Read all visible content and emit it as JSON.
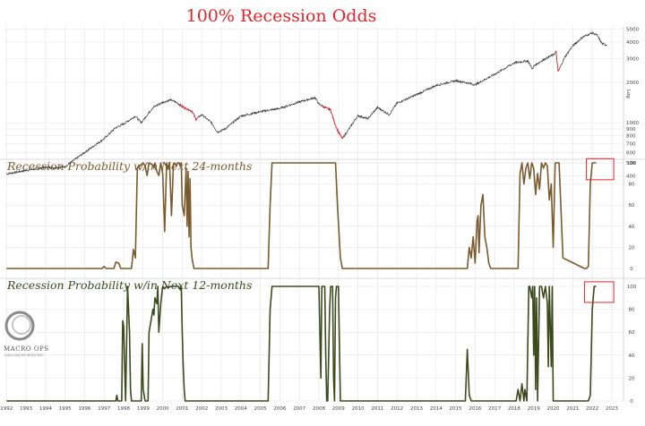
{
  "title": "100% Recession Odds",
  "colors": {
    "title": "#e0262c",
    "sp_line": "#3a3a3a",
    "sp_recession": "#e0262c",
    "prob24": "#7a5a2e",
    "prob12": "#3c4a1e",
    "highlight_box": "#e0262c",
    "grid": "#e4e4e4"
  },
  "logo": {
    "text": "MACRO OPS",
    "sub": "DATA DRIVEN INVESTING"
  },
  "chart_data": [
    {
      "type": "line",
      "panel": "top",
      "title": "",
      "ylabel": "Log",
      "yscale": "log",
      "ylim": [
        380,
        5200
      ],
      "yticks": [
        "400",
        "500",
        "600",
        "700",
        "800",
        "900",
        "1000",
        "2000",
        "3000",
        "4000",
        "5000"
      ],
      "x": [
        1992.0,
        1993.0,
        1994.0,
        1994.5,
        1995.0,
        1996.0,
        1997.0,
        1997.6,
        1998.0,
        1998.6,
        1998.9,
        1999.5,
        2000.0,
        2000.4,
        2000.7,
        2001.0,
        2001.5,
        2001.7,
        2002.0,
        2002.5,
        2002.8,
        2003.2,
        2004.0,
        2005.0,
        2006.0,
        2007.0,
        2007.8,
        2008.0,
        2008.3,
        2008.6,
        2008.8,
        2009.0,
        2009.2,
        2010.0,
        2010.5,
        2011.0,
        2011.6,
        2012.0,
        2013.0,
        2014.0,
        2015.0,
        2015.5,
        2016.0,
        2017.0,
        2018.0,
        2018.7,
        2018.95,
        2019.0,
        2019.5,
        2020.0,
        2020.15,
        2020.25,
        2020.6,
        2021.0,
        2021.5,
        2022.0,
        2022.25,
        2022.5,
        2022.75
      ],
      "values": [
        415,
        440,
        465,
        460,
        470,
        600,
        760,
        920,
        980,
        1120,
        1000,
        1300,
        1420,
        1480,
        1420,
        1320,
        1220,
        1060,
        1150,
        1000,
        850,
        900,
        1120,
        1210,
        1280,
        1430,
        1540,
        1380,
        1300,
        1250,
        1000,
        850,
        760,
        1130,
        1070,
        1300,
        1150,
        1400,
        1620,
        1900,
        2060,
        2000,
        1920,
        2300,
        2800,
        2900,
        2500,
        2650,
        2950,
        3220,
        3380,
        2400,
        3100,
        3750,
        4350,
        4700,
        4500,
        3900,
        3800
      ],
      "recession_segments": [
        [
          2000.9,
          2001.8
        ],
        [
          2008.2,
          2009.3
        ],
        [
          2020.1,
          2020.35
        ]
      ]
    },
    {
      "type": "line",
      "panel": "middle",
      "title": "Recession Probability w/in Next 24-months",
      "ylim": [
        0,
        100
      ],
      "yticks": [
        "0",
        "20",
        "40",
        "60",
        "80",
        "100"
      ],
      "x": [
        1992.0,
        1996.9,
        1997.0,
        1997.1,
        1997.5,
        1997.6,
        1997.75,
        1997.85,
        1998.4,
        1998.5,
        1998.6,
        1998.7,
        1999.0,
        1999.1,
        1999.2,
        1999.3,
        1999.5,
        1999.55,
        1999.6,
        1999.7,
        1999.8,
        1999.9,
        2000.0,
        2000.1,
        2000.2,
        2000.25,
        2000.35,
        2000.45,
        2000.55,
        2000.6,
        2000.7,
        2000.75,
        2000.85,
        2000.9,
        2000.95,
        2001.0,
        2001.1,
        2001.2,
        2001.25,
        2001.3,
        2001.35,
        2001.4,
        2001.45,
        2001.5,
        2001.6,
        2005.4,
        2005.5,
        2005.6,
        2005.7,
        2008.85,
        2008.95,
        2009.1,
        2009.2,
        2015.6,
        2015.7,
        2015.8,
        2015.9,
        2016.0,
        2016.1,
        2016.15,
        2016.2,
        2016.3,
        2016.4,
        2016.5,
        2016.6,
        2016.7,
        2016.8,
        2018.2,
        2018.3,
        2018.4,
        2018.5,
        2018.6,
        2018.7,
        2018.8,
        2018.9,
        2019.0,
        2019.1,
        2019.2,
        2019.3,
        2019.4,
        2019.5,
        2019.6,
        2019.7,
        2019.8,
        2019.9,
        2020.0,
        2020.1,
        2020.3,
        2020.5,
        2021.6,
        2021.7,
        2021.8,
        2021.9,
        2022.0,
        2022.1,
        2022.2
      ],
      "values": [
        0,
        0,
        2,
        0,
        0,
        6,
        5,
        0,
        0,
        18,
        10,
        95,
        100,
        97,
        88,
        100,
        98,
        95,
        100,
        92,
        88,
        100,
        90,
        35,
        100,
        95,
        100,
        50,
        99,
        100,
        97,
        100,
        100,
        98,
        100,
        60,
        50,
        95,
        40,
        92,
        30,
        85,
        20,
        10,
        0,
        0,
        60,
        100,
        100,
        100,
        60,
        10,
        0,
        0,
        20,
        10,
        30,
        5,
        45,
        50,
        15,
        60,
        70,
        30,
        20,
        5,
        0,
        0,
        90,
        100,
        80,
        95,
        100,
        85,
        100,
        95,
        70,
        90,
        75,
        100,
        95,
        100,
        97,
        65,
        80,
        20,
        100,
        100,
        10,
        0,
        0,
        2,
        80,
        100,
        100,
        100
      ],
      "highlight": {
        "x": [
          2021.7,
          2023.1
        ],
        "y": [
          84,
          104
        ]
      }
    },
    {
      "type": "line",
      "panel": "bottom",
      "title": "Recession Probability w/in Next 12-months",
      "ylim": [
        0,
        100
      ],
      "yticks": [
        "0",
        "20",
        "40",
        "60",
        "80",
        "100"
      ],
      "xticks": [
        "1992",
        "1993",
        "1994",
        "1995",
        "1996",
        "1997",
        "1998",
        "1999",
        "2000",
        "2001",
        "2002",
        "2003",
        "2004",
        "2005",
        "2006",
        "2007",
        "2008",
        "2009",
        "2010",
        "2011",
        "2012",
        "2013",
        "2014",
        "2015",
        "2016",
        "2017",
        "2018",
        "2019",
        "2020",
        "2021",
        "2022",
        "2023"
      ],
      "x": [
        1992.0,
        1997.6,
        1997.65,
        1997.7,
        1997.9,
        1997.95,
        1998.0,
        1998.1,
        1998.2,
        1998.3,
        1998.35,
        1998.4,
        1998.9,
        1998.95,
        1999.0,
        1999.1,
        1999.25,
        1999.3,
        1999.4,
        1999.5,
        1999.55,
        1999.6,
        1999.7,
        1999.75,
        1999.8,
        1999.9,
        2000.0,
        2000.1,
        2000.2,
        2000.3,
        2000.4,
        2000.5,
        2000.6,
        2000.7,
        2000.8,
        2000.9,
        2000.95,
        2001.0,
        2001.05,
        2001.1,
        2001.15,
        2005.4,
        2005.5,
        2005.6,
        2005.7,
        2008.0,
        2008.05,
        2008.1,
        2008.15,
        2008.3,
        2008.35,
        2008.4,
        2008.45,
        2008.55,
        2008.6,
        2008.7,
        2008.75,
        2008.8,
        2008.85,
        2008.9,
        2009.0,
        2009.1,
        2015.5,
        2015.6,
        2015.7,
        2015.8,
        2018.1,
        2018.2,
        2018.3,
        2018.4,
        2018.5,
        2018.55,
        2018.65,
        2018.75,
        2018.8,
        2018.9,
        2018.95,
        2019.0,
        2019.05,
        2019.1,
        2019.15,
        2019.2,
        2019.3,
        2019.4,
        2019.5,
        2019.6,
        2019.7,
        2019.75,
        2019.8,
        2019.9,
        2019.95,
        2020.0,
        2020.1,
        2021.8,
        2021.9,
        2022.0,
        2022.1,
        2022.2
      ],
      "values": [
        0,
        0,
        5,
        0,
        0,
        70,
        65,
        0,
        100,
        60,
        10,
        0,
        0,
        50,
        10,
        0,
        0,
        60,
        70,
        80,
        75,
        90,
        85,
        100,
        60,
        85,
        100,
        98,
        100,
        99,
        100,
        100,
        100,
        100,
        100,
        97,
        100,
        60,
        30,
        10,
        0,
        0,
        80,
        100,
        100,
        100,
        60,
        20,
        100,
        100,
        40,
        0,
        0,
        80,
        100,
        100,
        20,
        0,
        90,
        100,
        100,
        0,
        0,
        45,
        5,
        0,
        0,
        10,
        0,
        15,
        0,
        10,
        0,
        100,
        100,
        90,
        100,
        40,
        100,
        10,
        90,
        0,
        100,
        100,
        90,
        100,
        85,
        30,
        100,
        30,
        100,
        0,
        0,
        0,
        5,
        80,
        100,
        100
      ],
      "highlight": {
        "x": [
          2021.6,
          2023.1
        ],
        "y": [
          86,
          104
        ]
      }
    }
  ]
}
